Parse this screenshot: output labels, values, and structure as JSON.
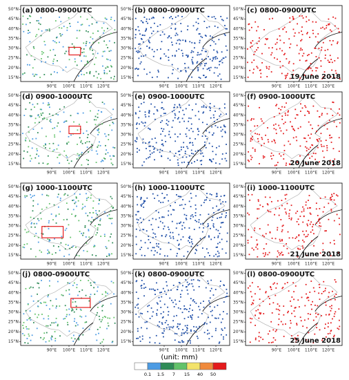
{
  "panels": [
    {
      "label": "(a) 0800-0900UTC",
      "colors": [
        "#4c9be3",
        "#2e8b57",
        "#62c26a"
      ]
    },
    {
      "label": "(b) 0800-0900UTC",
      "colors": [
        "#1f4fa8"
      ]
    },
    {
      "label": "(c) 0800-0900UTC",
      "colors": [
        "#e41a1c"
      ],
      "date": "19 June 2018"
    },
    {
      "label": "(d) 0900-1000UTC",
      "colors": [
        "#4c9be3",
        "#2e8b57",
        "#62c26a"
      ]
    },
    {
      "label": "(e) 0900-1000UTC",
      "colors": [
        "#1f4fa8"
      ]
    },
    {
      "label": "(f) 0900-1000UTC",
      "colors": [
        "#e41a1c"
      ],
      "date": "20 June 2018"
    },
    {
      "label": "(g) 1000-1100UTC",
      "colors": [
        "#4c9be3",
        "#2e8b57",
        "#62c26a"
      ]
    },
    {
      "label": "(h) 1000-1100UTC",
      "colors": [
        "#1f4fa8"
      ]
    },
    {
      "label": "(i) 1000-1100UTC",
      "colors": [
        "#e41a1c"
      ],
      "date": "21 June 2018"
    },
    {
      "label": "(j) 0800-0900UTC",
      "colors": [
        "#4c9be3",
        "#2e8b57",
        "#62c26a"
      ]
    },
    {
      "label": "(k) 0800-0900UTC",
      "colors": [
        "#1f4fa8"
      ]
    },
    {
      "label": "(l) 0800-0900UTC",
      "colors": [
        "#e41a1c"
      ],
      "date": "25 June 2018"
    }
  ],
  "lat_ticks": [
    {
      "value": 15,
      "label": "15°N"
    },
    {
      "value": 20,
      "label": "20°N"
    },
    {
      "value": 25,
      "label": "25°N"
    },
    {
      "value": 30,
      "label": "30°N"
    },
    {
      "value": 35,
      "label": "35°N"
    },
    {
      "value": 40,
      "label": "40°N"
    },
    {
      "value": 45,
      "label": "45°N"
    },
    {
      "value": 50,
      "label": "50°N"
    }
  ],
  "lon_ticks": [
    {
      "value": 90,
      "label": "90°E"
    },
    {
      "value": 100,
      "label": "100°E"
    },
    {
      "value": 110,
      "label": "110°E"
    },
    {
      "value": 120,
      "label": "120°E"
    }
  ],
  "colorbar": {
    "unit": "(unit: mm)",
    "levels": [
      0.1,
      1.5,
      7,
      15,
      40,
      50
    ],
    "colors": [
      "#ffffff",
      "#4c9be3",
      "#2e8b57",
      "#62c26a",
      "#f3e36b",
      "#f08a3c",
      "#e41a1c"
    ]
  }
}
